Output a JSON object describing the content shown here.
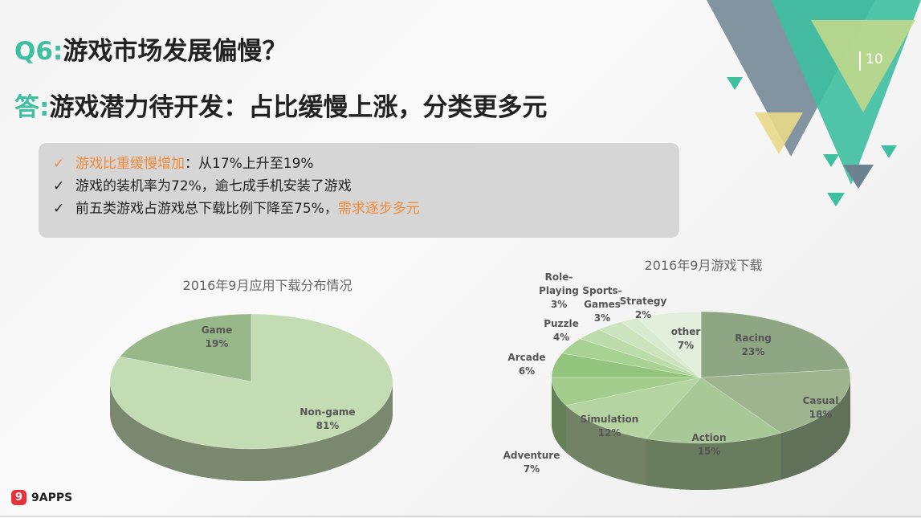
{
  "page_number": "10",
  "title_q": {
    "prefix": "Q6:",
    "text": "游戏市场发展偏慢？"
  },
  "title_a": {
    "prefix": "答:",
    "text": "游戏潜力待开发：占比缓慢上涨，分类更多元"
  },
  "bullets": [
    {
      "check": "✓",
      "highlight": "游戏比重缓慢增加",
      "rest": "：从17%上升至19%",
      "tail": ""
    },
    {
      "check": "✓",
      "highlight": "",
      "rest": "游戏的装机率为72%，逾七成手机安装了游戏",
      "tail": ""
    },
    {
      "check": "✓",
      "highlight": "",
      "rest": "前五类游戏占游戏总下载比例下降至75%，",
      "tail": "需求逐步多元"
    }
  ],
  "logo": {
    "icon": "9",
    "text": "9APPS"
  },
  "colors": {
    "accent": "#3dbfa0",
    "highlight": "#ef8a3a"
  },
  "chart_data": [
    {
      "type": "pie",
      "style": "3d",
      "title": "2016年9月应用下载分布情况",
      "slices": [
        {
          "label": "Non-game",
          "value": 81,
          "color": "#c3dcb3"
        },
        {
          "label": "Game",
          "value": 19,
          "color": "#98b88a"
        }
      ]
    },
    {
      "type": "pie",
      "style": "3d",
      "title": "2016年9月游戏下载",
      "slices": [
        {
          "label": "Racing",
          "value": 23,
          "color": "#8ea683"
        },
        {
          "label": "Casual",
          "value": 18,
          "color": "#9db48f"
        },
        {
          "label": "Action",
          "value": 15,
          "color": "#a9c898"
        },
        {
          "label": "Simulation",
          "value": 12,
          "color": "#b6d4a2"
        },
        {
          "label": "Adventure",
          "value": 7,
          "color": "#a3cd8c"
        },
        {
          "label": "Arcade",
          "value": 6,
          "color": "#93c47e"
        },
        {
          "label": "Puzzle",
          "value": 4,
          "color": "#a8d293"
        },
        {
          "label": "Role-\nPlaying",
          "value": 3,
          "color": "#bcdcab"
        },
        {
          "label": "Sports-\nGames",
          "value": 3,
          "color": "#cbe4be"
        },
        {
          "label": "Strategy",
          "value": 2,
          "color": "#d8ead0"
        },
        {
          "label": "other",
          "value": 7,
          "color": "#e3efdd"
        }
      ]
    }
  ]
}
